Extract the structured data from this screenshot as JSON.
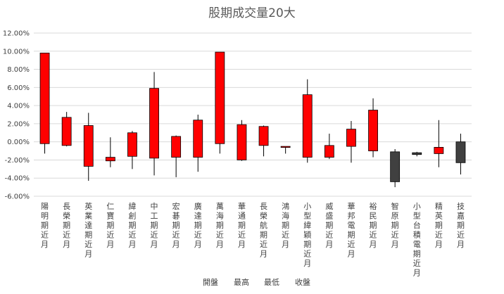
{
  "chart_data": {
    "type": "candlestick",
    "title": "股期成交量20大",
    "ylim": [
      -6,
      12
    ],
    "yticks": [
      12,
      10,
      8,
      6,
      4,
      2,
      0,
      -2,
      -4,
      -6
    ],
    "ytick_labels": [
      "12.00%",
      "10.00%",
      "8.00%",
      "6.00%",
      "4.00%",
      "2.00%",
      "0.00%",
      "-2.00%",
      "-4.00%",
      "-6.00%"
    ],
    "legend": [
      "開盤",
      "最高",
      "最低",
      "收盤"
    ],
    "up_color": "#ff0000",
    "down_color": "#404040",
    "categories": [
      "陽明期近月",
      "長榮期近月",
      "英業達期近月",
      "仁寶期近月",
      "緯創期近月",
      "中工期近月",
      "宏碁期近月",
      "廣達期近月",
      "萬海期近月",
      "華通期近月",
      "長榮航期近月",
      "鴻海期近月",
      "小型緯穎期近月",
      "威盛期近月",
      "華邦電期近月",
      "裕民期近月",
      "智原期近月",
      "小型台積電期近月",
      "精英期近月",
      "技嘉期近月"
    ],
    "open": [
      -0.2,
      -0.4,
      -2.7,
      -2.1,
      -1.6,
      -1.8,
      -1.7,
      -1.7,
      -0.2,
      -2.0,
      -0.4,
      -0.6,
      -1.7,
      -1.7,
      -0.5,
      -1.0,
      -1.1,
      -1.2,
      -1.3,
      0.0
    ],
    "high": [
      9.8,
      3.3,
      3.2,
      0.5,
      1.2,
      7.7,
      0.7,
      3.0,
      9.9,
      2.4,
      1.8,
      -0.5,
      6.9,
      0.9,
      2.3,
      4.8,
      -0.8,
      -1.1,
      2.4,
      0.9
    ],
    "low": [
      -1.3,
      -0.5,
      -4.3,
      -2.8,
      -3.0,
      -3.7,
      -3.9,
      -3.3,
      -1.3,
      -2.1,
      -1.6,
      -1.3,
      -2.3,
      -1.9,
      -2.3,
      -1.7,
      -5.0,
      -1.6,
      -2.8,
      -3.6
    ],
    "close": [
      9.8,
      2.7,
      1.8,
      -1.7,
      1.0,
      5.9,
      0.6,
      2.4,
      9.9,
      1.9,
      1.7,
      -0.5,
      5.2,
      -0.4,
      1.4,
      3.5,
      -4.4,
      -1.4,
      -0.6,
      -2.3
    ]
  }
}
